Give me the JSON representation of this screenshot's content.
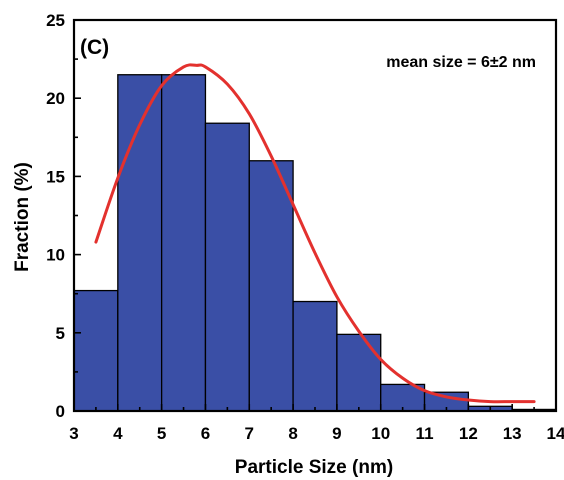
{
  "chart_data": {
    "type": "bar",
    "panel_label": "(C)",
    "annotation": "mean size = 6±2 nm",
    "xlabel": "Particle Size (nm)",
    "ylabel": "Fraction (%)",
    "xlim": [
      3,
      14
    ],
    "ylim": [
      0,
      25
    ],
    "x_ticks": [
      "3",
      "4",
      "5",
      "6",
      "7",
      "8",
      "9",
      "10",
      "11",
      "12",
      "13",
      "14"
    ],
    "y_ticks": [
      "0",
      "5",
      "10",
      "15",
      "20",
      "25"
    ],
    "grid": false,
    "bin_width": 1,
    "bins": [
      {
        "start": 3,
        "value": 7.7
      },
      {
        "start": 4,
        "value": 21.5
      },
      {
        "start": 5,
        "value": 21.5
      },
      {
        "start": 6,
        "value": 18.4
      },
      {
        "start": 7,
        "value": 16.0
      },
      {
        "start": 8,
        "value": 7.0
      },
      {
        "start": 9,
        "value": 4.9
      },
      {
        "start": 10,
        "value": 1.7
      },
      {
        "start": 11,
        "value": 1.2
      },
      {
        "start": 12,
        "value": 0.3
      },
      {
        "start": 13,
        "value": 0.1
      }
    ],
    "fit_curve": {
      "x": [
        3.5,
        4.0,
        4.5,
        5.0,
        5.5,
        5.8,
        6.0,
        6.5,
        7.0,
        7.5,
        8.0,
        8.5,
        9.0,
        9.5,
        10.0,
        10.5,
        11.0,
        11.5,
        12.0,
        12.5,
        13.0,
        13.5
      ],
      "y": [
        10.8,
        14.9,
        18.3,
        20.8,
        22.0,
        22.1,
        22.0,
        20.9,
        19.0,
        16.3,
        13.2,
        10.1,
        7.3,
        5.1,
        3.3,
        2.1,
        1.3,
        0.9,
        0.7,
        0.6,
        0.6,
        0.6
      ]
    },
    "colors": {
      "bar_fill": "#3a4fa6",
      "bar_stroke": "#000000",
      "curve": "#e3312e",
      "axis": "#000000"
    }
  }
}
